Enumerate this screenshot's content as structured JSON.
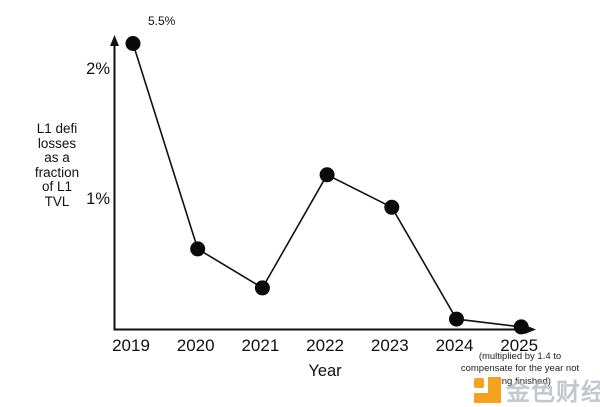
{
  "chart_data": {
    "type": "line",
    "title": "",
    "x_labels": [
      "2019",
      "2020",
      "2021",
      "2022",
      "2023",
      "2024",
      "2025"
    ],
    "values_pct_plotted": [
      2.2,
      0.62,
      0.32,
      1.19,
      0.94,
      0.08,
      0.02
    ],
    "annotations": [
      {
        "point_index": 0,
        "label": "5.5%",
        "meaning": "actual 2019 value, point clipped at axis top"
      }
    ],
    "xlabel": "Year",
    "ylabel_lines": [
      "L1 defi",
      "losses",
      "as a",
      "fraction",
      "of L1",
      "TVL"
    ],
    "yticks": [
      {
        "value": 1,
        "label": "1%"
      },
      {
        "value": 2,
        "label": "2%"
      }
    ],
    "ylim": [
      0,
      2.25
    ],
    "grid": false,
    "legend": "none",
    "line_color": "#111111",
    "point_color": "#0a0a0a",
    "note_lines": [
      "(multiplied by 1.4 to",
      "compensate for the year not",
      "being finished)"
    ]
  },
  "watermark": {
    "text": "金色财经",
    "logo": "jinse-finance-logo",
    "logo_color": "#F5A31F",
    "text_color": "#b0b6bd"
  }
}
